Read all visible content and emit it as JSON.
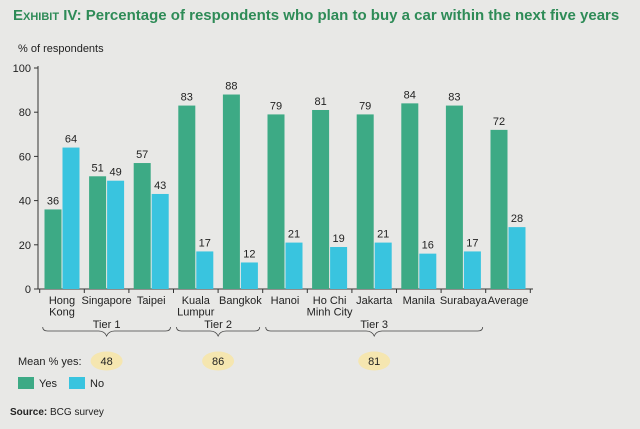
{
  "header": {
    "exhibit": "Exhibit IV:",
    "title": "Percentage of respondents who plan to buy a car within the next five years"
  },
  "footer": {
    "source_label": "Source:",
    "source_text": "BCG survey"
  },
  "colors": {
    "yes": "#3daa85",
    "no": "#39c4df",
    "title": "#2e8b57",
    "badge": "#f5e6b0"
  },
  "chart_data": {
    "type": "bar",
    "ylabel": "% of respondents",
    "ylim": [
      0,
      100
    ],
    "yticks": [
      0,
      20,
      40,
      60,
      80,
      100
    ],
    "grid": false,
    "categories": [
      [
        "Hong",
        "Kong"
      ],
      [
        "Singapore"
      ],
      [
        "Taipei"
      ],
      [
        "Kuala",
        "Lumpur"
      ],
      [
        "Bangkok"
      ],
      [
        "Hanoi"
      ],
      [
        "Ho Chi",
        "Minh City"
      ],
      [
        "Jakarta"
      ],
      [
        "Manila"
      ],
      [
        "Surabaya"
      ],
      [
        "Average"
      ]
    ],
    "series": [
      {
        "name": "Yes",
        "color": "#3daa85",
        "values": [
          36,
          51,
          57,
          83,
          88,
          79,
          81,
          79,
          84,
          83,
          72
        ]
      },
      {
        "name": "No",
        "color": "#39c4df",
        "values": [
          64,
          49,
          43,
          17,
          12,
          21,
          19,
          21,
          16,
          17,
          28
        ]
      }
    ],
    "tiers": [
      {
        "label": "Tier 1",
        "start": 0,
        "end": 2,
        "mean": "48"
      },
      {
        "label": "Tier 2",
        "start": 3,
        "end": 4,
        "mean": "86"
      },
      {
        "label": "Tier 3",
        "start": 5,
        "end": 9,
        "mean": "81"
      }
    ],
    "mean_label": "Mean % yes:",
    "legend": [
      {
        "label": "Yes",
        "color": "#3daa85"
      },
      {
        "label": "No",
        "color": "#39c4df"
      }
    ],
    "legend_placement": "bottom-left"
  }
}
